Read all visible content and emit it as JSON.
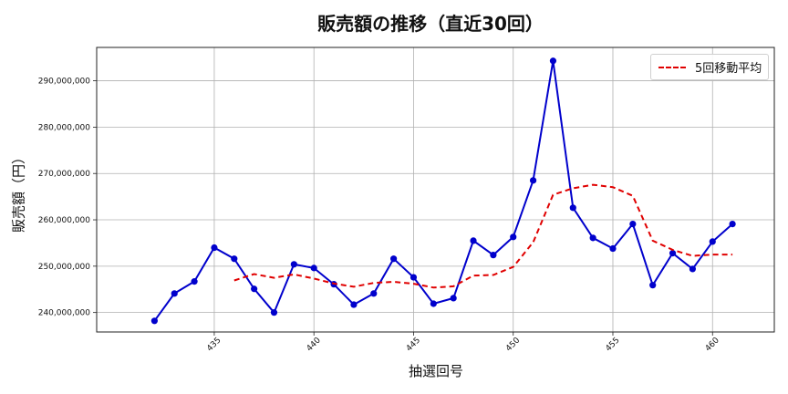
{
  "chart_data": {
    "type": "line",
    "title": "販売額の推移（直近30回）",
    "xlabel": "抽選回号",
    "ylabel": "販売額（円）",
    "x": [
      432,
      433,
      434,
      435,
      436,
      437,
      438,
      439,
      440,
      441,
      442,
      443,
      444,
      445,
      446,
      447,
      448,
      449,
      450,
      451,
      452,
      453,
      454,
      455,
      456,
      457,
      458,
      459,
      460,
      461
    ],
    "x_ticks": [
      435,
      440,
      445,
      450,
      455,
      460
    ],
    "y_ticks": [
      240000000,
      250000000,
      260000000,
      270000000,
      280000000,
      290000000
    ],
    "y_tick_labels": [
      "240,000,000",
      "250,000,000",
      "260,000,000",
      "270,000,000",
      "280,000,000",
      "290,000,000"
    ],
    "ylim": [
      235800000,
      297200000
    ],
    "xlim": [
      429.1,
      463.1
    ],
    "grid": true,
    "legend_position": "upper right",
    "series": [
      {
        "name": "販売額",
        "color": "#0000cc",
        "style": "solid-with-markers",
        "show_in_legend": false,
        "values": [
          238200000,
          244100000,
          246700000,
          254000000,
          251600000,
          245100000,
          240000000,
          250400000,
          249600000,
          246100000,
          241700000,
          244100000,
          251600000,
          247600000,
          241900000,
          243100000,
          255500000,
          252400000,
          256300000,
          268500000,
          294300000,
          262600000,
          256100000,
          253800000,
          259100000,
          245900000,
          252800000,
          249400000,
          255300000,
          259100000
        ]
      },
      {
        "name": "5回移動平均",
        "color": "#e00000",
        "style": "dashed",
        "show_in_legend": true,
        "values": [
          null,
          null,
          null,
          null,
          246920000,
          248300000,
          247480000,
          248220000,
          247340000,
          246240000,
          245560000,
          246380000,
          246620000,
          246220000,
          245380000,
          245660000,
          247960000,
          248100000,
          249840000,
          255160000,
          265400000,
          266820000,
          267560000,
          267060000,
          265180000,
          255500000,
          253540000,
          252220000,
          252500000,
          252500000
        ]
      }
    ]
  },
  "legend": {
    "items": [
      {
        "label": "5回移動平均",
        "color": "#e00000"
      }
    ]
  }
}
